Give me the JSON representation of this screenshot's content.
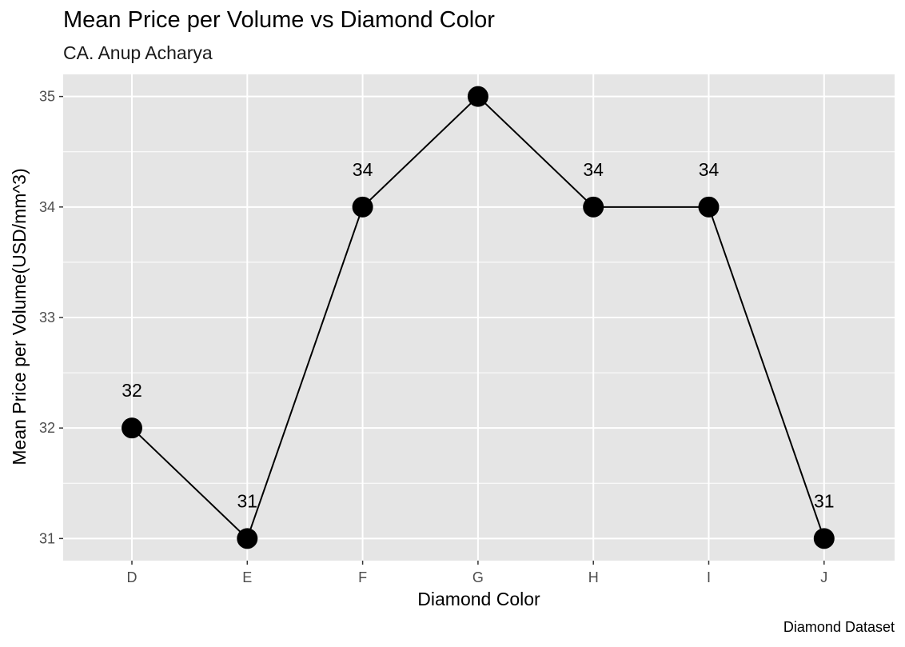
{
  "chart_data": {
    "type": "line",
    "title": "Mean Price per Volume vs Diamond Color",
    "subtitle": "CA. Anup Acharya",
    "caption": "Diamond Dataset",
    "xlabel": "Diamond Color",
    "ylabel": "Mean Price per Volume(USD/mm^3)",
    "categories": [
      "D",
      "E",
      "F",
      "G",
      "H",
      "I",
      "J"
    ],
    "values": [
      32,
      31,
      34,
      35,
      34,
      34,
      31
    ],
    "data_labels": [
      "32",
      "31",
      "34",
      "",
      "34",
      "34",
      "31"
    ],
    "ylim": [
      30.8,
      35.2
    ],
    "yticks": [
      31,
      32,
      33,
      34,
      35
    ],
    "grid": true,
    "legend": "none",
    "colors": {
      "panel_background": "#e5e5e5",
      "grid": "#ffffff",
      "line": "#000000",
      "point": "#000000",
      "tick_text": "#4d4d4d"
    }
  }
}
